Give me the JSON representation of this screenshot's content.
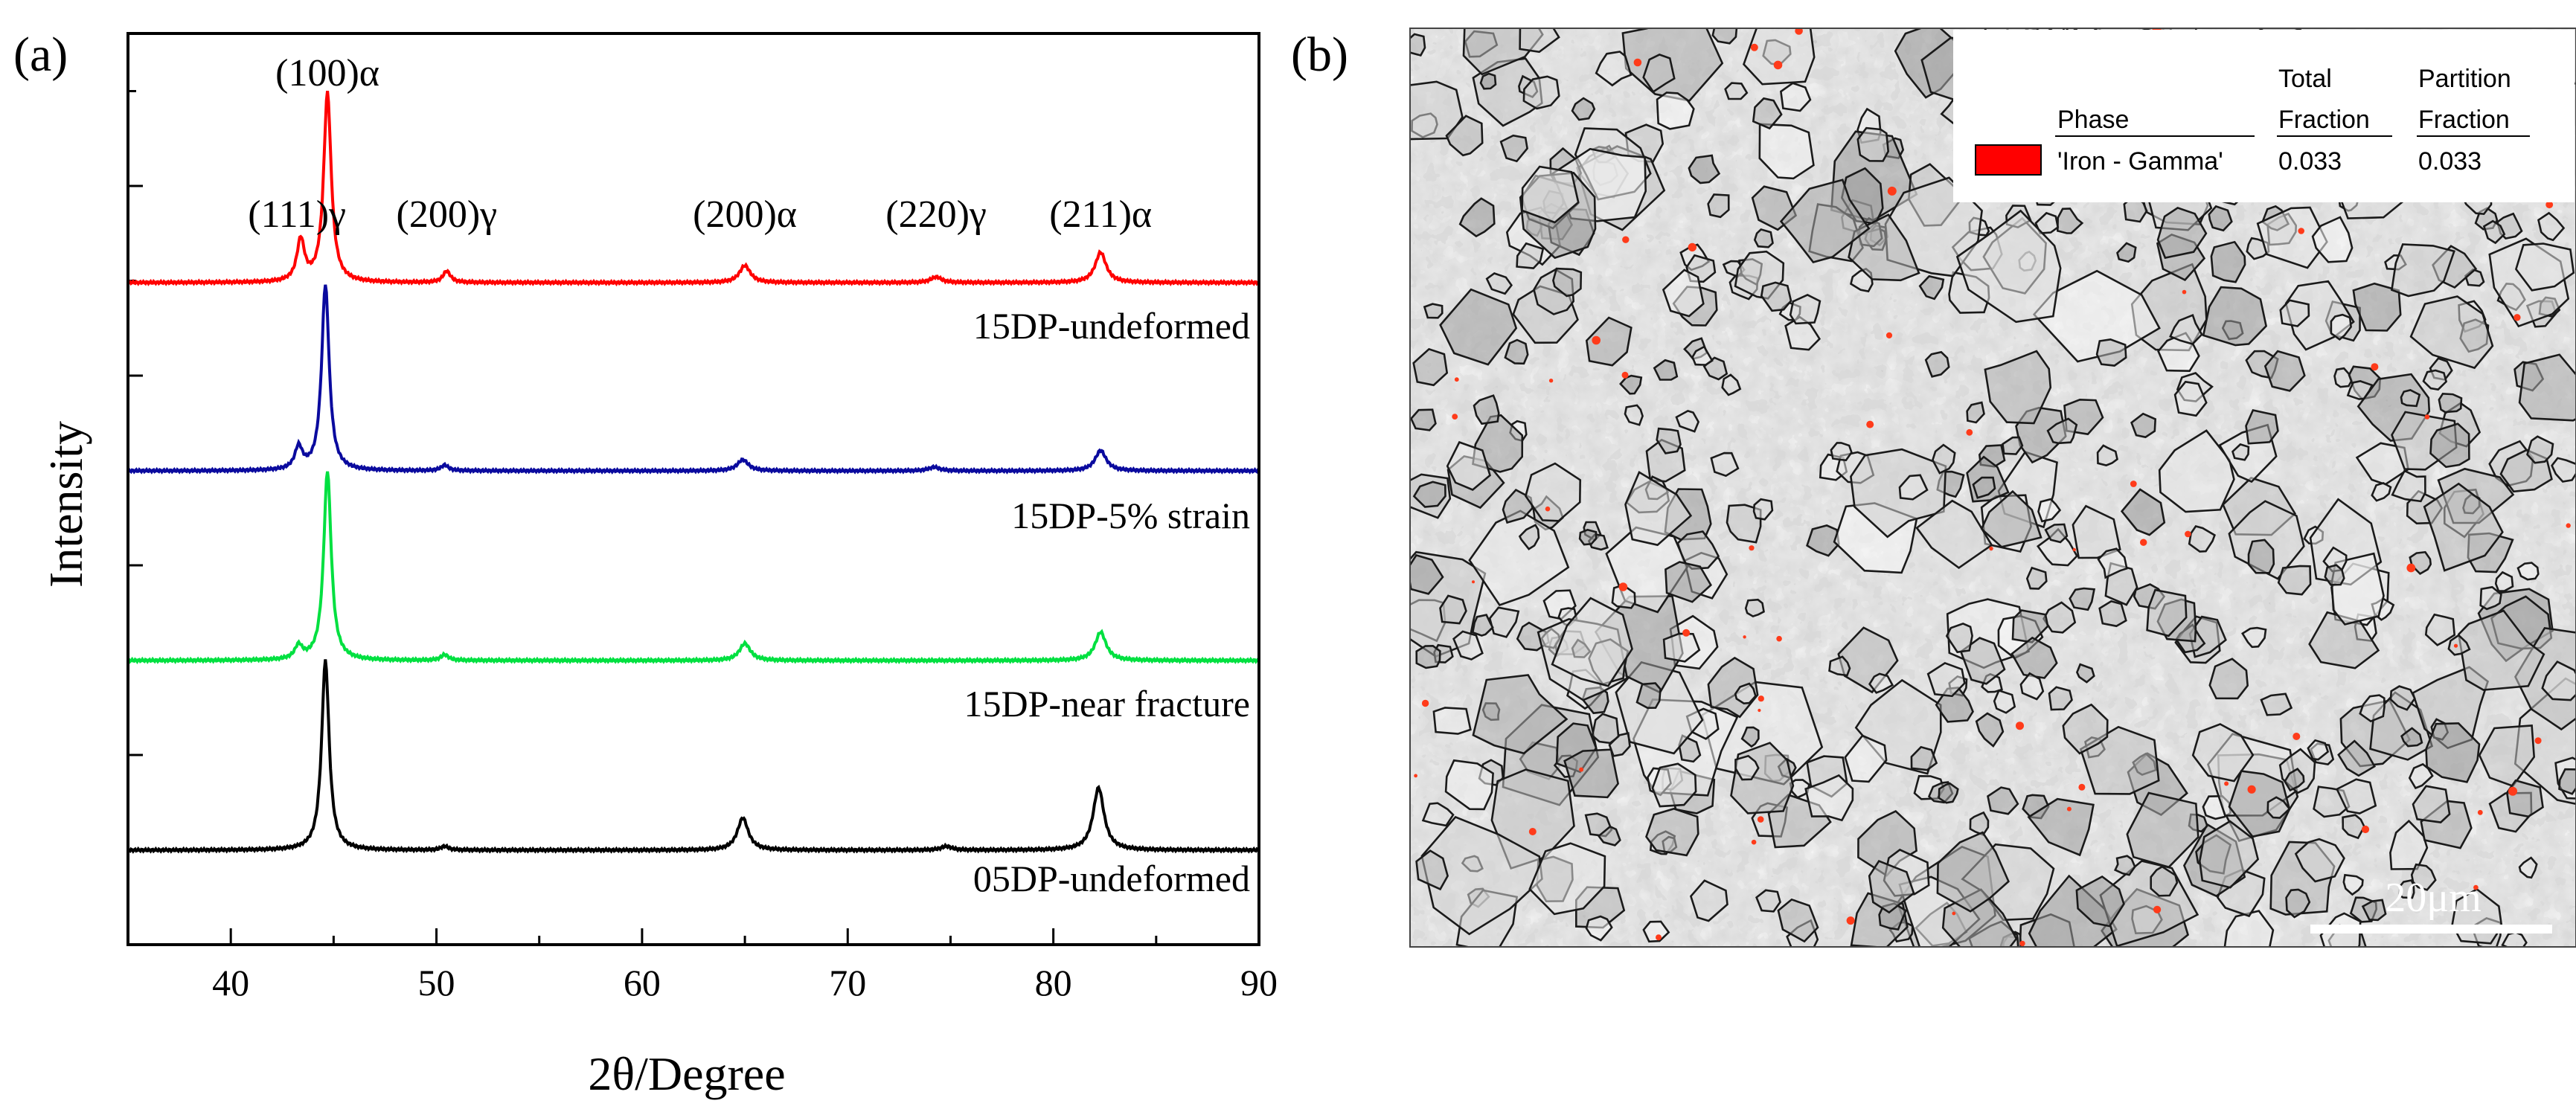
{
  "panels": {
    "a": {
      "label": "(a)"
    },
    "b": {
      "label": "(b)"
    }
  },
  "chart_data": {
    "type": "line",
    "xlabel": "2θ/Degree",
    "ylabel": "Intensity",
    "xlim": [
      35,
      90
    ],
    "xticks": [
      40,
      50,
      60,
      70,
      80,
      90
    ],
    "y_tick_labels_shown": false,
    "grid": false,
    "peak_annotations": [
      {
        "label": "(111)γ",
        "x": 43.4
      },
      {
        "label": "(100)α",
        "x": 44.7
      },
      {
        "label": "(200)γ",
        "x": 50.5
      },
      {
        "label": "(200)α",
        "x": 65.0
      },
      {
        "label": "(220)γ",
        "x": 74.3
      },
      {
        "label": "(211)α",
        "x": 82.3
      }
    ],
    "series": [
      {
        "name": "15DP-undeformed",
        "color": "#ff0000",
        "peaks": [
          {
            "x": 43.4,
            "h": 0.22
          },
          {
            "x": 44.7,
            "h": 1.0
          },
          {
            "x": 50.5,
            "h": 0.06
          },
          {
            "x": 65.0,
            "h": 0.09
          },
          {
            "x": 74.3,
            "h": 0.03
          },
          {
            "x": 82.3,
            "h": 0.16
          }
        ]
      },
      {
        "name": "15DP-5% strain",
        "color": "#0a0a9e",
        "peaks": [
          {
            "x": 43.3,
            "h": 0.12
          },
          {
            "x": 44.6,
            "h": 1.0
          },
          {
            "x": 50.4,
            "h": 0.03
          },
          {
            "x": 64.9,
            "h": 0.06
          },
          {
            "x": 74.2,
            "h": 0.02
          },
          {
            "x": 82.3,
            "h": 0.11
          }
        ]
      },
      {
        "name": "15DP-near fracture",
        "color": "#00e040",
        "peaks": [
          {
            "x": 43.3,
            "h": 0.07
          },
          {
            "x": 44.7,
            "h": 1.0
          },
          {
            "x": 50.4,
            "h": 0.03
          },
          {
            "x": 65.0,
            "h": 0.09
          },
          {
            "x": 82.3,
            "h": 0.15
          }
        ]
      },
      {
        "name": "05DP-undeformed",
        "color": "#000000",
        "peaks": [
          {
            "x": 44.6,
            "h": 1.0
          },
          {
            "x": 50.4,
            "h": 0.02
          },
          {
            "x": 64.9,
            "h": 0.17
          },
          {
            "x": 74.8,
            "h": 0.02
          },
          {
            "x": 82.2,
            "h": 0.33
          }
        ]
      }
    ]
  },
  "micrograph": {
    "legend": {
      "headers": {
        "phase": "Phase",
        "total": "Total",
        "total2": "Fraction",
        "partition": "Partition",
        "partition2": "Fraction"
      },
      "row": {
        "swatch_color": "#ff0000",
        "phase": "'Iron - Gamma'",
        "total_fraction": "0.033",
        "partition_fraction": "0.033"
      }
    },
    "scale_bar": "20μm"
  }
}
